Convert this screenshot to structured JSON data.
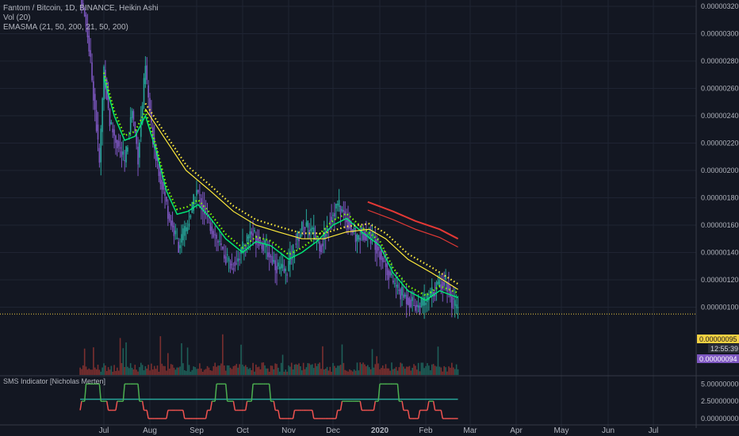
{
  "header": {
    "title": "Fantom / Bitcoin, 1D, BINANCE, Heikin Ashi",
    "volume": "Vol (20)",
    "emasma": "EMASMA (21, 50, 200, 21, 50, 200)"
  },
  "indicator": {
    "label": "SMS Indicator [Nicholas Merten]",
    "axis_ticks": [
      "5.00000000",
      "2.50000000",
      "0.00000000"
    ]
  },
  "price_badges": {
    "last_price": "0.00000095",
    "countdown": "12:55:39",
    "prev_price": "0.00000094"
  },
  "colors": {
    "background": "#131722",
    "grid": "#1f2433",
    "candle_up": "#26a69a",
    "candle_down": "#7e57c2",
    "ema_fast": "#7cfc00",
    "ema_mid": "#00e676",
    "sma": "#ffeb3b",
    "red_line": "#e53935",
    "price_line": "#f5d142",
    "badge_purple": "#7e57c2",
    "sms_green": "#4caf50",
    "sms_red": "#ef5350",
    "sms_teal": "#26a69a"
  },
  "chart_data": {
    "type": "candlestick",
    "title": "Fantom / Bitcoin, 1D, BINANCE, Heikin Ashi",
    "x_ticks": [
      "Jul",
      "Aug",
      "Sep",
      "Oct",
      "Nov",
      "Dec",
      "2020",
      "Feb",
      "Mar",
      "Apr",
      "May",
      "Jun",
      "Jul"
    ],
    "y_ticks": [
      "0.00000320",
      "0.00000300",
      "0.00000280",
      "0.00000260",
      "0.00000240",
      "0.00000220",
      "0.00000200",
      "0.00000180",
      "0.00000160",
      "0.00000140",
      "0.00000120",
      "0.00000100"
    ],
    "ylim": [
      8.7e-07,
      3.22e-06
    ],
    "last_price": 9.5e-07,
    "price_series": [
      {
        "date": "2019-06-15",
        "close": 3.3e-06
      },
      {
        "date": "2019-06-20",
        "close": 3e-06
      },
      {
        "date": "2019-06-25",
        "close": 2.45e-06
      },
      {
        "date": "2019-06-28",
        "close": 2.05e-06
      },
      {
        "date": "2019-07-01",
        "close": 2.75e-06
      },
      {
        "date": "2019-07-05",
        "close": 2.35e-06
      },
      {
        "date": "2019-07-10",
        "close": 2.2e-06
      },
      {
        "date": "2019-07-15",
        "close": 2.05e-06
      },
      {
        "date": "2019-07-20",
        "close": 2.45e-06
      },
      {
        "date": "2019-07-24",
        "close": 2.1e-06
      },
      {
        "date": "2019-07-29",
        "close": 2.75e-06
      },
      {
        "date": "2019-08-02",
        "close": 2.3e-06
      },
      {
        "date": "2019-08-08",
        "close": 1.95e-06
      },
      {
        "date": "2019-08-14",
        "close": 1.65e-06
      },
      {
        "date": "2019-08-20",
        "close": 1.45e-06
      },
      {
        "date": "2019-08-26",
        "close": 1.6e-06
      },
      {
        "date": "2019-09-01",
        "close": 1.85e-06
      },
      {
        "date": "2019-09-06",
        "close": 1.7e-06
      },
      {
        "date": "2019-09-12",
        "close": 1.55e-06
      },
      {
        "date": "2019-09-18",
        "close": 1.4e-06
      },
      {
        "date": "2019-09-24",
        "close": 1.3e-06
      },
      {
        "date": "2019-09-30",
        "close": 1.4e-06
      },
      {
        "date": "2019-10-06",
        "close": 1.55e-06
      },
      {
        "date": "2019-10-12",
        "close": 1.5e-06
      },
      {
        "date": "2019-10-18",
        "close": 1.4e-06
      },
      {
        "date": "2019-10-24",
        "close": 1.3e-06
      },
      {
        "date": "2019-10-30",
        "close": 1.25e-06
      },
      {
        "date": "2019-11-05",
        "close": 1.45e-06
      },
      {
        "date": "2019-11-11",
        "close": 1.6e-06
      },
      {
        "date": "2019-11-17",
        "close": 1.55e-06
      },
      {
        "date": "2019-11-23",
        "close": 1.45e-06
      },
      {
        "date": "2019-11-29",
        "close": 1.65e-06
      },
      {
        "date": "2019-12-04",
        "close": 1.75e-06
      },
      {
        "date": "2019-12-10",
        "close": 1.65e-06
      },
      {
        "date": "2019-12-16",
        "close": 1.5e-06
      },
      {
        "date": "2019-12-22",
        "close": 1.55e-06
      },
      {
        "date": "2019-12-28",
        "close": 1.5e-06
      },
      {
        "date": "2020-01-03",
        "close": 1.35e-06
      },
      {
        "date": "2020-01-09",
        "close": 1.2e-06
      },
      {
        "date": "2020-01-15",
        "close": 1.1e-06
      },
      {
        "date": "2020-01-21",
        "close": 1.05e-06
      },
      {
        "date": "2020-01-27",
        "close": 1e-06
      },
      {
        "date": "2020-02-02",
        "close": 1.05e-06
      },
      {
        "date": "2020-02-08",
        "close": 1.15e-06
      },
      {
        "date": "2020-02-14",
        "close": 1.2e-06
      },
      {
        "date": "2020-02-18",
        "close": 1.05e-06
      },
      {
        "date": "2020-02-22",
        "close": 9.5e-07
      }
    ],
    "series": [
      {
        "name": "EMASMA EMA 21",
        "points": [
          {
            "date": "2019-07-01",
            "value": 2.68e-06
          },
          {
            "date": "2019-07-08",
            "value": 2.4e-06
          },
          {
            "date": "2019-07-15",
            "value": 2.22e-06
          },
          {
            "date": "2019-07-22",
            "value": 2.25e-06
          },
          {
            "date": "2019-07-29",
            "value": 2.4e-06
          },
          {
            "date": "2019-08-05",
            "value": 2.15e-06
          },
          {
            "date": "2019-08-12",
            "value": 1.85e-06
          },
          {
            "date": "2019-08-19",
            "value": 1.68e-06
          },
          {
            "date": "2019-08-26",
            "value": 1.7e-06
          },
          {
            "date": "2019-09-02",
            "value": 1.75e-06
          },
          {
            "date": "2019-09-10",
            "value": 1.65e-06
          },
          {
            "date": "2019-09-20",
            "value": 1.5e-06
          },
          {
            "date": "2019-10-01",
            "value": 1.4e-06
          },
          {
            "date": "2019-10-10",
            "value": 1.48e-06
          },
          {
            "date": "2019-10-20",
            "value": 1.45e-06
          },
          {
            "date": "2019-11-01",
            "value": 1.35e-06
          },
          {
            "date": "2019-11-10",
            "value": 1.4e-06
          },
          {
            "date": "2019-11-20",
            "value": 1.48e-06
          },
          {
            "date": "2019-12-01",
            "value": 1.6e-06
          },
          {
            "date": "2019-12-10",
            "value": 1.65e-06
          },
          {
            "date": "2019-12-20",
            "value": 1.55e-06
          },
          {
            "date": "2020-01-01",
            "value": 1.45e-06
          },
          {
            "date": "2020-01-10",
            "value": 1.25e-06
          },
          {
            "date": "2020-01-20",
            "value": 1.12e-06
          },
          {
            "date": "2020-02-01",
            "value": 1.05e-06
          },
          {
            "date": "2020-02-10",
            "value": 1.12e-06
          },
          {
            "date": "2020-02-22",
            "value": 1.07e-06
          }
        ]
      },
      {
        "name": "EMASMA SMA 50",
        "points": [
          {
            "date": "2019-07-29",
            "value": 2.45e-06
          },
          {
            "date": "2019-08-10",
            "value": 2.25e-06
          },
          {
            "date": "2019-08-25",
            "value": 2e-06
          },
          {
            "date": "2019-09-10",
            "value": 1.85e-06
          },
          {
            "date": "2019-09-25",
            "value": 1.7e-06
          },
          {
            "date": "2019-10-10",
            "value": 1.6e-06
          },
          {
            "date": "2019-10-25",
            "value": 1.55e-06
          },
          {
            "date": "2019-11-10",
            "value": 1.5e-06
          },
          {
            "date": "2019-11-25",
            "value": 1.5e-06
          },
          {
            "date": "2019-12-10",
            "value": 1.55e-06
          },
          {
            "date": "2019-12-25",
            "value": 1.57e-06
          },
          {
            "date": "2020-01-05",
            "value": 1.5e-06
          },
          {
            "date": "2020-01-20",
            "value": 1.35e-06
          },
          {
            "date": "2020-02-05",
            "value": 1.25e-06
          },
          {
            "date": "2020-02-22",
            "value": 1.13e-06
          }
        ]
      },
      {
        "name": "EMASMA 200",
        "points": [
          {
            "date": "2019-12-24",
            "value": 1.77e-06
          },
          {
            "date": "2020-01-10",
            "value": 1.7e-06
          },
          {
            "date": "2020-01-25",
            "value": 1.63e-06
          },
          {
            "date": "2020-02-10",
            "value": 1.57e-06
          },
          {
            "date": "2020-02-22",
            "value": 1.5e-06
          }
        ]
      }
    ],
    "sms_indicator": {
      "ylim": [
        0,
        5.5
      ],
      "levels": [
        0,
        2.5,
        5
      ]
    }
  }
}
